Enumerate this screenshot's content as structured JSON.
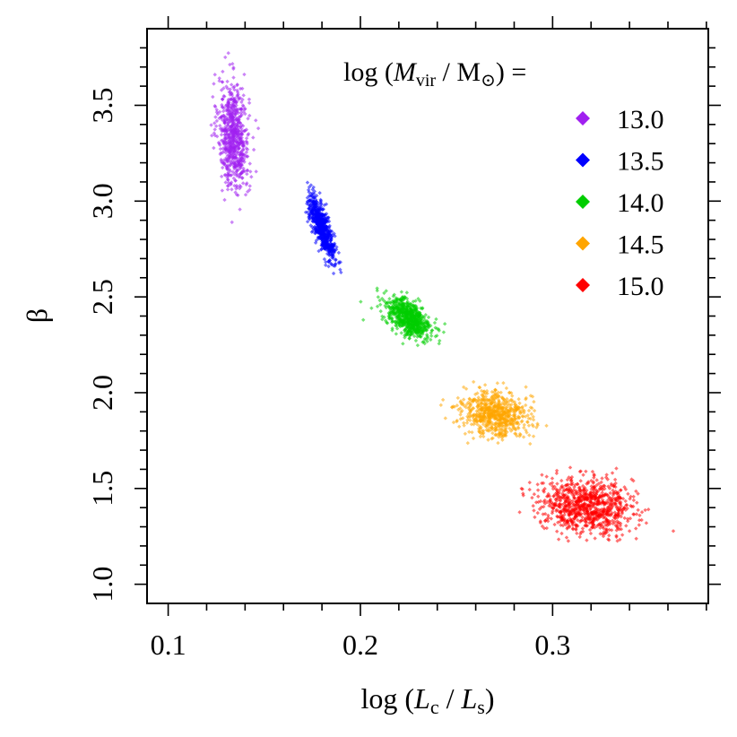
{
  "chart_data": {
    "type": "scatter",
    "title": "",
    "xlabel": {
      "text": "log (L_c / L_s)",
      "prefix": "log (",
      "v1": "L",
      "s1": "c",
      "mid": " / ",
      "v2": "L",
      "s2": "s",
      "suffix": ")"
    },
    "ylabel": "β",
    "xlim": [
      0.089,
      0.381
    ],
    "ylim": [
      0.9,
      3.9
    ],
    "x_ticks": [
      0.1,
      0.2,
      0.3
    ],
    "x_tick_labels": [
      "0.1",
      "0.2",
      "0.3"
    ],
    "y_ticks": [
      1.0,
      1.5,
      2.0,
      2.5,
      3.0,
      3.5
    ],
    "y_tick_labels": [
      "1.0",
      "1.5",
      "2.0",
      "2.5",
      "3.0",
      "3.5"
    ],
    "legend": {
      "title": {
        "text": "log (M_vir / M_⊙) =",
        "prefix": "log (",
        "v": "M",
        "vsub": "vir",
        "mid": " / M",
        "sym": "⊙",
        "suffix": ") ="
      },
      "placement": "top-right",
      "entries": [
        "13.0",
        "13.5",
        "14.0",
        "14.5",
        "15.0"
      ]
    },
    "series": [
      {
        "name": "13.0",
        "color": "#a020f0",
        "cx": 0.134,
        "cy": 3.34,
        "sx": 0.004,
        "sy": 0.14,
        "rho": -0.15,
        "n": 700
      },
      {
        "name": "13.5",
        "color": "#0000ff",
        "cx": 0.18,
        "cy": 2.86,
        "sx": 0.0034,
        "sy": 0.085,
        "rho": -0.8,
        "n": 700
      },
      {
        "name": "14.0",
        "color": "#00cd00",
        "cx": 0.225,
        "cy": 2.39,
        "sx": 0.006,
        "sy": 0.055,
        "rho": -0.55,
        "n": 700
      },
      {
        "name": "14.5",
        "color": "#ffa500",
        "cx": 0.27,
        "cy": 1.89,
        "sx": 0.0085,
        "sy": 0.06,
        "rho": -0.2,
        "n": 700
      },
      {
        "name": "15.0",
        "color": "#ff0000",
        "cx": 0.318,
        "cy": 1.41,
        "sx": 0.012,
        "sy": 0.07,
        "rho": -0.15,
        "n": 900
      }
    ]
  }
}
